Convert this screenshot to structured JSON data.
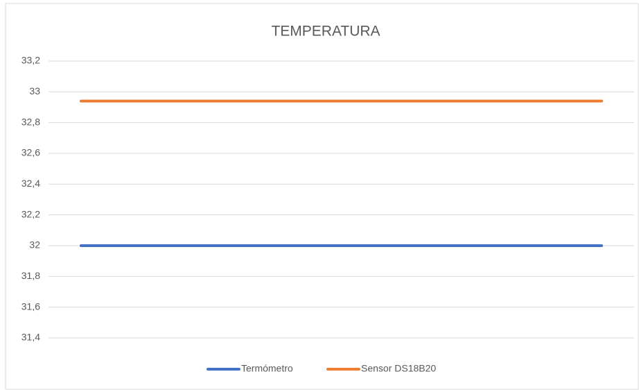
{
  "chart_data": {
    "type": "line",
    "title": "TEMPERATURA",
    "categories": [
      null,
      null,
      null,
      null,
      null,
      null,
      null,
      null,
      null
    ],
    "series": [
      {
        "name": "Termómetro",
        "color": "#4472c4",
        "values": [
          32,
          32,
          32,
          32,
          32,
          32,
          32,
          32,
          32
        ]
      },
      {
        "name": "Sensor DS18B20",
        "color": "#ed7d31",
        "values": [
          32.94,
          32.94,
          32.94,
          32.94,
          32.94,
          32.94,
          32.94,
          32.94,
          32.94
        ]
      }
    ],
    "ylim": [
      31.4,
      33.2
    ],
    "yticks": [
      {
        "value": 31.4,
        "label": "31,4"
      },
      {
        "value": 31.6,
        "label": "31,6"
      },
      {
        "value": 31.8,
        "label": "31,8"
      },
      32,
      {
        "value": 32.2,
        "label": "32,2"
      },
      {
        "value": 32.4,
        "label": "32,4"
      },
      {
        "value": 32.6,
        "label": "32,6"
      },
      {
        "value": 32.8,
        "label": "32,8"
      },
      33,
      {
        "value": 33.2,
        "label": "33,2"
      }
    ],
    "grid": true,
    "legend": "bottom"
  }
}
